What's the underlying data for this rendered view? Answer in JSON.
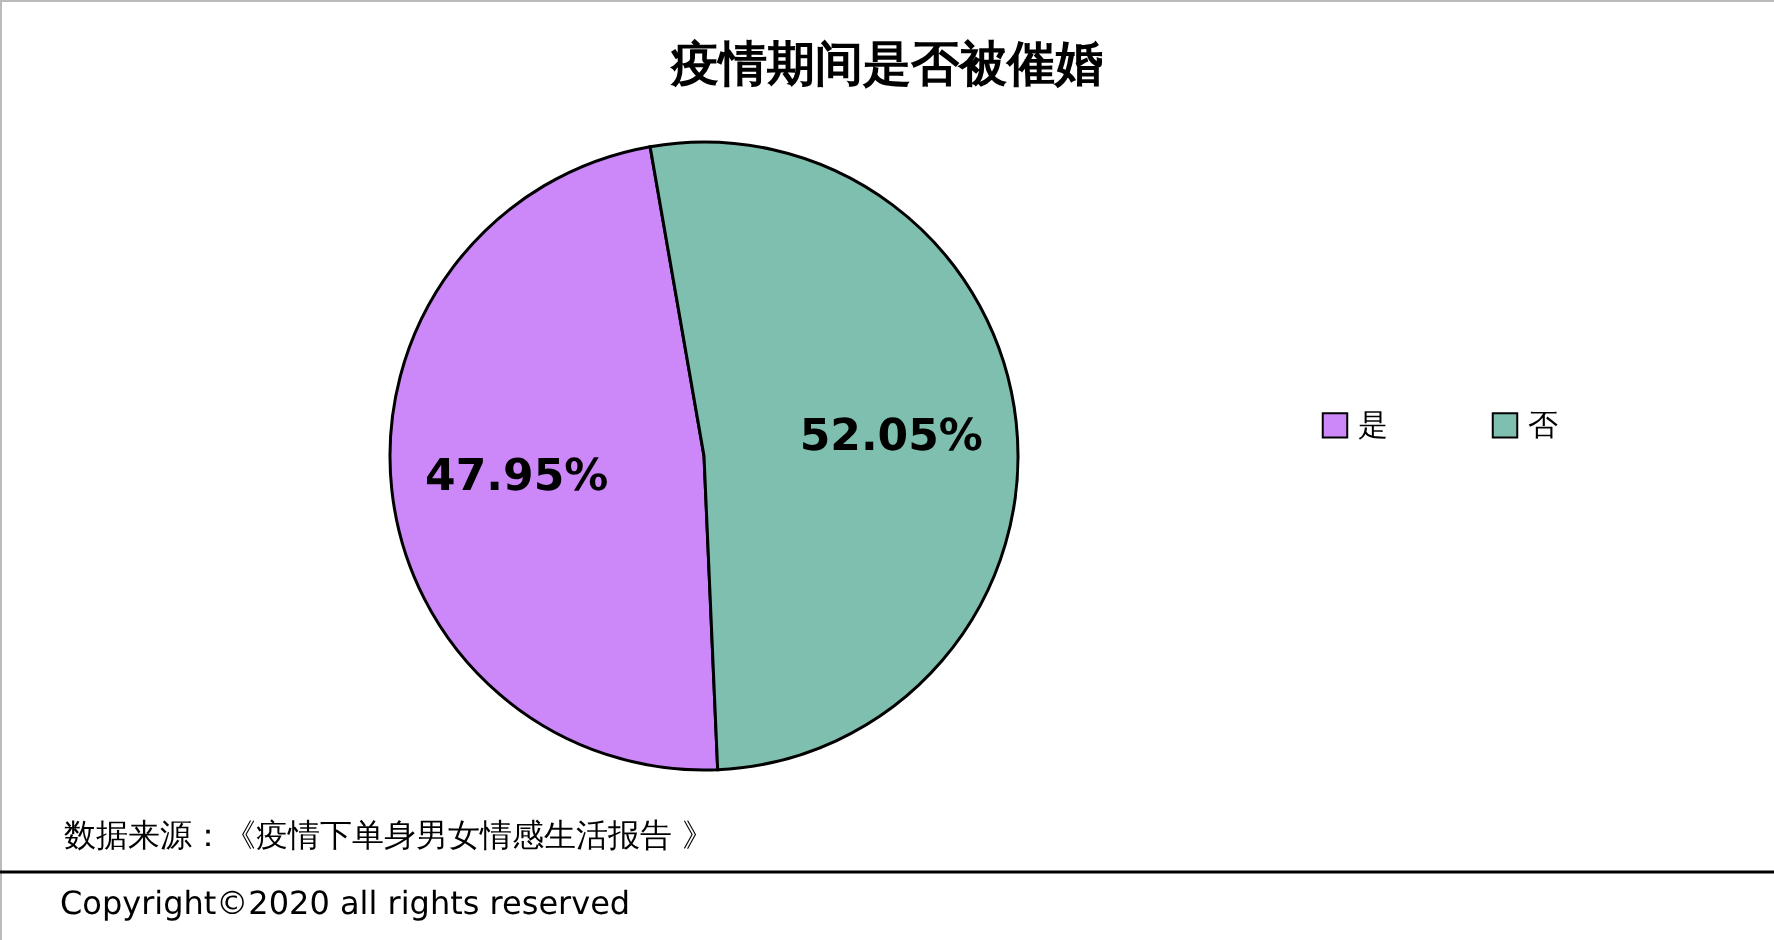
{
  "chart_data": {
    "type": "pie",
    "title": "疫情期间是否被催婚",
    "categories": [
      "是",
      "否"
    ],
    "values": [
      47.95,
      52.05
    ],
    "colors": [
      "#cc88f8",
      "#7fbfb0"
    ],
    "value_labels": [
      "47.95%",
      "52.05%"
    ],
    "legend": "right",
    "annotations": [
      "数据来源：《疫情下单身男女情感生活报告 》",
      "Copyright©2020 all rights reserved"
    ]
  }
}
